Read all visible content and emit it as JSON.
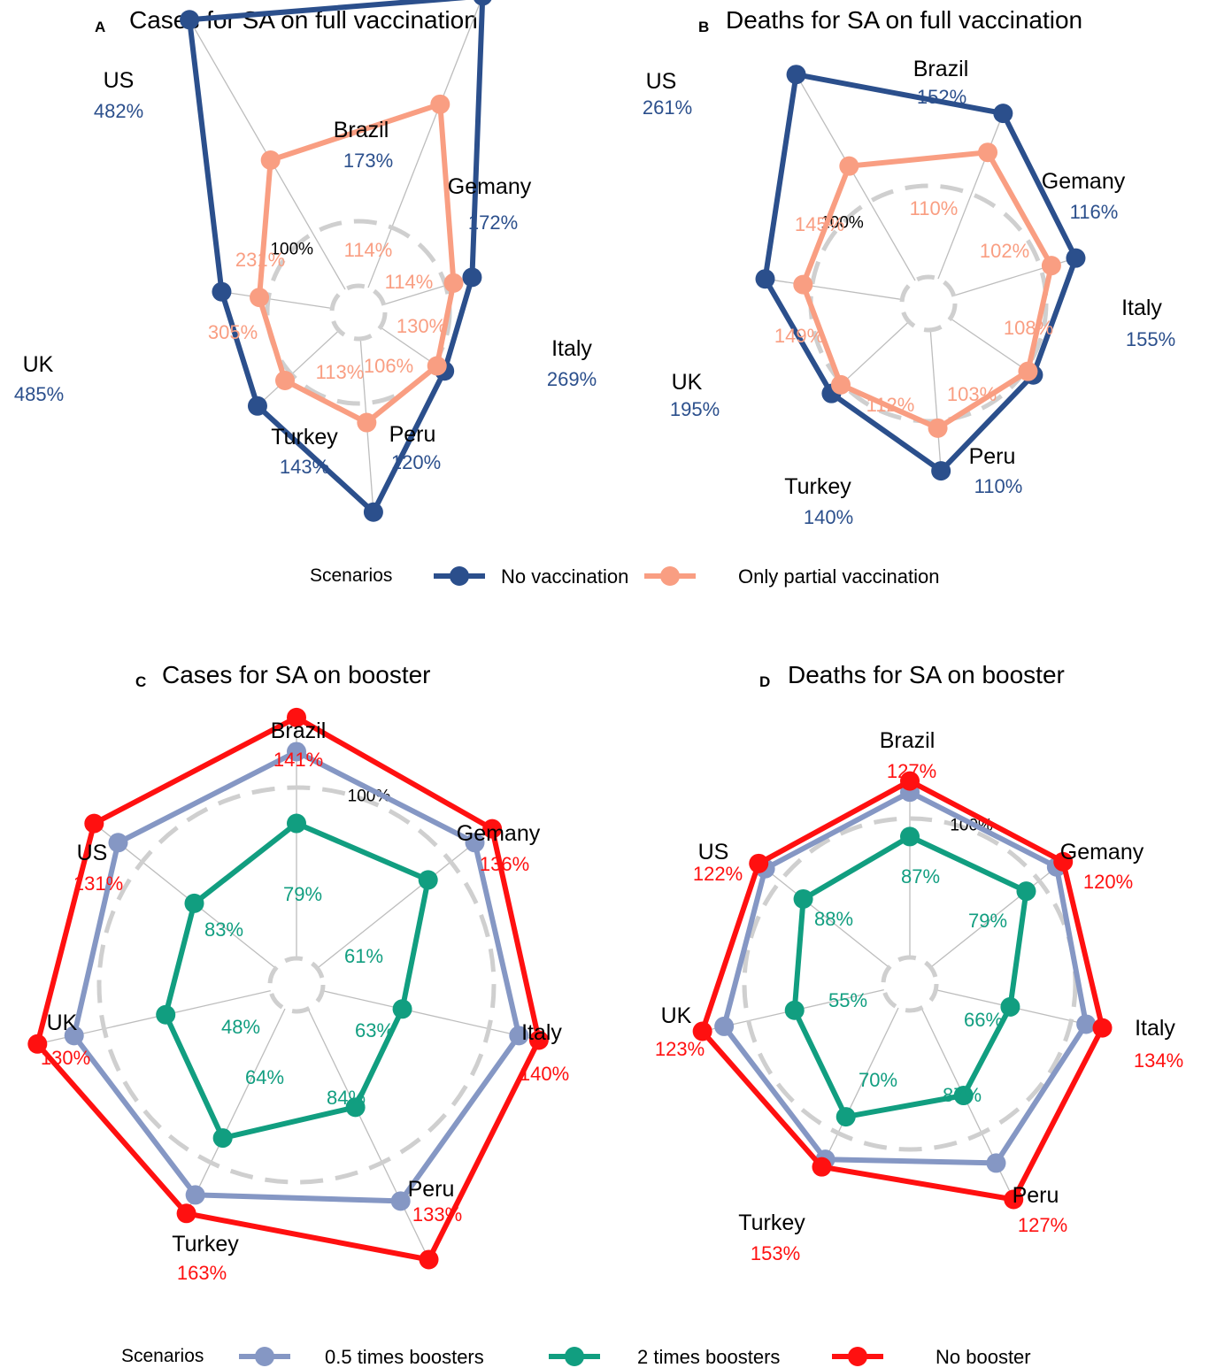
{
  "chart_data": [
    {
      "type": "radar",
      "panel": "A",
      "title": "Cases for SA on full vaccination",
      "reference_label": "100%",
      "categories": [
        "US",
        "Brazil",
        "Gemany",
        "Italy",
        "Peru",
        "Turkey",
        "UK"
      ],
      "series": [
        {
          "name": "No vaccination",
          "color": "#2b4f8c",
          "values": [
            482,
            173,
            172,
            269,
            120,
            143,
            485
          ],
          "labels": [
            "482%",
            "173%",
            "172%",
            "269%",
            "120%",
            "143%",
            "485%"
          ]
        },
        {
          "name": "Only partial vaccination",
          "color": "#f99e82",
          "values": [
            231,
            114,
            114,
            130,
            106,
            113,
            305
          ],
          "labels": [
            "231%",
            "114%",
            "114%",
            "130%",
            "106%",
            "113%",
            "305%"
          ]
        }
      ]
    },
    {
      "type": "radar",
      "panel": "B",
      "title": "Deaths for SA on full vaccination",
      "reference_label": "100%",
      "categories": [
        "US",
        "Brazil",
        "Gemany",
        "Italy",
        "Peru",
        "Turkey",
        "UK"
      ],
      "series": [
        {
          "name": "No vaccination",
          "color": "#2b4f8c",
          "values": [
            261,
            152,
            116,
            155,
            110,
            140,
            195
          ],
          "labels": [
            "261%",
            "152%",
            "116%",
            "155%",
            "110%",
            "140%",
            "195%"
          ]
        },
        {
          "name": "Only partial vaccination",
          "color": "#f99e82",
          "values": [
            145,
            110,
            102,
            108,
            103,
            112,
            149
          ],
          "labels": [
            "145%",
            "110%",
            "102%",
            "108%",
            "103%",
            "112%",
            "149%"
          ]
        }
      ]
    },
    {
      "type": "radar",
      "panel": "C",
      "title": "Cases for SA on booster",
      "reference_label": "100%",
      "categories": [
        "Brazil",
        "Gemany",
        "Italy",
        "Peru",
        "Turkey",
        "UK",
        "US"
      ],
      "series": [
        {
          "name": "0.5 times boosters",
          "color": "#8597c4",
          "values": [
            121,
            118,
            118,
            121,
            125,
            118,
            118
          ],
          "labels": []
        },
        {
          "name": "2 times boosters",
          "color": "#119e80",
          "values": [
            79,
            61,
            63,
            84,
            64,
            48,
            83
          ],
          "labels": [
            "79%",
            "61%",
            "63%",
            "84%",
            "64%",
            "48%",
            "83%"
          ]
        },
        {
          "name": "No booster",
          "color": "#ff1010",
          "values": [
            141,
            136,
            140,
            133,
            163,
            130,
            131
          ],
          "labels": [
            "141%",
            "136%",
            "140%",
            "133%",
            "163%",
            "130%",
            "131%"
          ]
        }
      ]
    },
    {
      "type": "radar",
      "panel": "D",
      "title": "Deaths for SA on booster",
      "reference_label": "100%",
      "categories": [
        "Brazil",
        "Gemany",
        "Italy",
        "Peru",
        "Turkey",
        "UK",
        "US"
      ],
      "series": [
        {
          "name": "0.5 times boosters",
          "color": "#8597c4",
          "values": [
            119,
            114,
            118,
            121,
            124,
            111,
            116
          ],
          "labels": []
        },
        {
          "name": "2 times boosters",
          "color": "#119e80",
          "values": [
            87,
            79,
            66,
            87,
            70,
            55,
            88
          ],
          "labels": [
            "87%",
            "79%",
            "66%",
            "87%",
            "70%",
            "55%",
            "88%"
          ]
        },
        {
          "name": "No booster",
          "color": "#ff1010",
          "values": [
            127,
            120,
            134,
            127,
            153,
            123,
            122
          ],
          "labels": [
            "127%",
            "120%",
            "134%",
            "127%",
            "153%",
            "123%",
            "122%"
          ]
        }
      ]
    }
  ],
  "legends": [
    {
      "title": "Scenarios",
      "items": [
        {
          "label": "No vaccination",
          "color": "#2b4f8c"
        },
        {
          "label": "Only partial vaccination",
          "color": "#f99e82"
        }
      ]
    },
    {
      "title": "Scenarios",
      "items": [
        {
          "label": "0.5 times boosters",
          "color": "#8597c4"
        },
        {
          "label": "2 times boosters",
          "color": "#119e80"
        },
        {
          "label": "No booster",
          "color": "#ff1010"
        }
      ]
    }
  ]
}
